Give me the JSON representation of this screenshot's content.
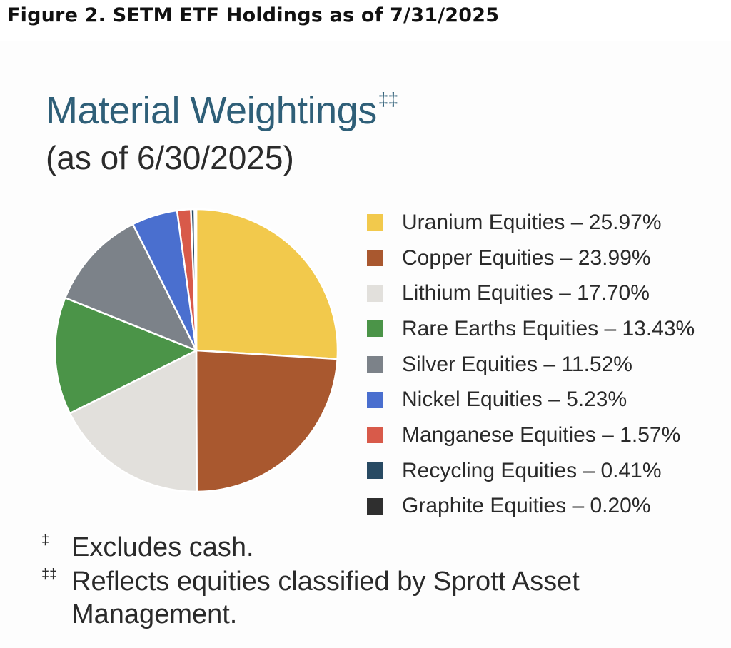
{
  "figure_title": "Figure 2. SETM ETF Holdings as of 7/31/2025",
  "chart_data": {
    "type": "pie",
    "title": "Material Weightings",
    "title_superscript": "‡‡",
    "subtitle": "(as of 6/30/2025)",
    "legend_placement": "right",
    "slices": [
      {
        "label": "Uranium Equities – 25.97%",
        "name": "Uranium Equities",
        "value": 25.97,
        "color": "#f2c94c"
      },
      {
        "label": "Copper Equities – 23.99%",
        "name": "Copper Equities",
        "value": 23.99,
        "color": "#a9582f"
      },
      {
        "label": "Lithium Equities – 17.70%",
        "name": "Lithium Equities",
        "value": 17.7,
        "color": "#e2e0dc"
      },
      {
        "label": "Rare Earths Equities – 13.43%",
        "name": "Rare Earths Equities",
        "value": 13.43,
        "color": "#4b9448"
      },
      {
        "label": "Silver Equities – 11.52%",
        "name": "Silver Equities",
        "value": 11.52,
        "color": "#7c8289"
      },
      {
        "label": "Nickel Equities – 5.23%",
        "name": "Nickel Equities",
        "value": 5.23,
        "color": "#4a6fcf"
      },
      {
        "label": "Manganese Equities – 1.57%",
        "name": "Manganese Equities",
        "value": 1.57,
        "color": "#d85a4a"
      },
      {
        "label": "Recycling Equities – 0.41%",
        "name": "Recycling Equities",
        "value": 0.41,
        "color": "#284a63"
      },
      {
        "label": "Graphite Equities – 0.20%",
        "name": "Graphite Equities",
        "value": 0.2,
        "color": "#2f2f2f"
      }
    ]
  },
  "footnotes": [
    {
      "mark": "‡",
      "text": "Excludes cash."
    },
    {
      "mark": "‡‡",
      "text": "Reflects equities classified by Sprott Asset Management."
    }
  ]
}
